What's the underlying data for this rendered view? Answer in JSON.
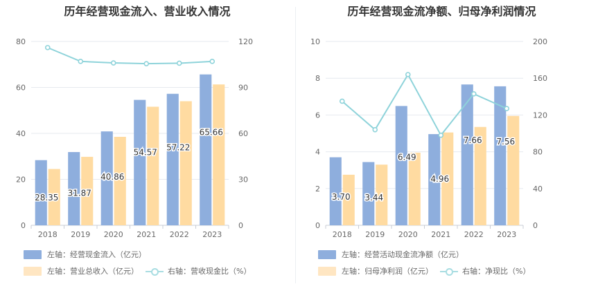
{
  "chart_data": [
    {
      "type": "bar",
      "title": "历年经营现金流入、营业收入情况",
      "categories": [
        "2018",
        "2019",
        "2020",
        "2021",
        "2022",
        "2023"
      ],
      "left_ylim": [
        0,
        80
      ],
      "left_ticks": [
        "0",
        "20",
        "40",
        "60",
        "80"
      ],
      "right_ylim": [
        0,
        120
      ],
      "right_ticks": [
        "0",
        "30",
        "60",
        "90",
        "120"
      ],
      "series": [
        {
          "name": "左轴：经营现金流入（亿元）",
          "axis": "left",
          "kind": "bar",
          "color": "#8eaedd",
          "values": [
            28.35,
            31.87,
            40.86,
            54.57,
            57.22,
            65.66
          ],
          "labels": [
            "28.35",
            "31.87",
            "40.86",
            "54.57",
            "57.22",
            "65.66"
          ]
        },
        {
          "name": "左轴：营业总收入（亿元）",
          "axis": "left",
          "kind": "bar",
          "color": "#ffdba1",
          "values": [
            24.5,
            29.8,
            38.5,
            51.6,
            54.0,
            61.3
          ]
        },
        {
          "name": "右轴：营收现金比（%）",
          "axis": "right",
          "kind": "line",
          "color": "#8ed3da",
          "values": [
            116,
            107,
            106,
            105.5,
            105.8,
            107
          ]
        }
      ]
    },
    {
      "type": "bar",
      "title": "历年经营现金流净额、归母净利润情况",
      "categories": [
        "2018",
        "2019",
        "2020",
        "2021",
        "2022",
        "2023"
      ],
      "left_ylim": [
        0,
        10
      ],
      "left_ticks": [
        "0",
        "2",
        "4",
        "6",
        "8",
        "10"
      ],
      "right_ylim": [
        0,
        200
      ],
      "right_ticks": [
        "0",
        "40",
        "80",
        "120",
        "160",
        "200"
      ],
      "series": [
        {
          "name": "左轴：经营活动现金流净额（亿元）",
          "axis": "left",
          "kind": "bar",
          "color": "#8eaedd",
          "values": [
            3.7,
            3.44,
            6.49,
            4.96,
            7.66,
            7.56
          ],
          "labels": [
            "3.70",
            "3.44",
            "6.49",
            "4.96",
            "7.66",
            "7.56"
          ]
        },
        {
          "name": "左轴：归母净利润（亿元）",
          "axis": "left",
          "kind": "bar",
          "color": "#ffdba1",
          "values": [
            2.75,
            3.3,
            3.95,
            5.05,
            5.35,
            5.95
          ]
        },
        {
          "name": "右轴：净现比（%）",
          "axis": "right",
          "kind": "line",
          "color": "#8ed3da",
          "values": [
            135,
            104,
            164,
            98,
            143,
            127
          ]
        }
      ]
    }
  ]
}
